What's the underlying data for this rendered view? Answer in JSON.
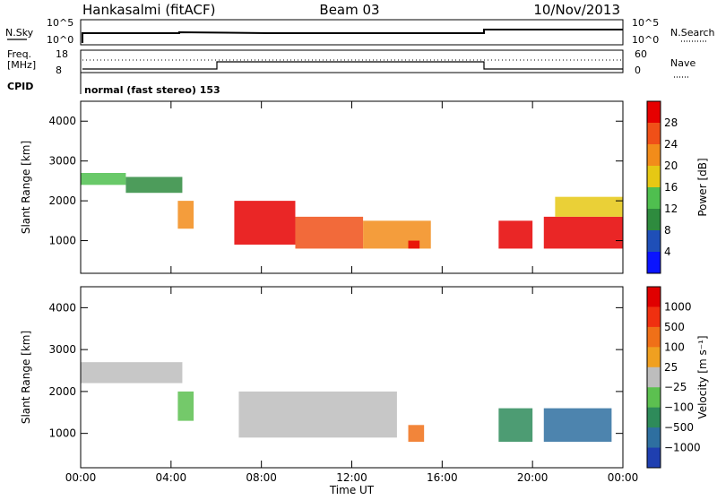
{
  "header": {
    "station": "Hankasalmi (fitACF)",
    "beam": "Beam 03",
    "date": "10/Nov/2013"
  },
  "top_panels": {
    "nsky_label": "N.Sky",
    "nsky_ticks": [
      "10^5",
      "10^0"
    ],
    "nsearch_label": "N.Search",
    "nsearch_ticks": [
      "10^5",
      "10^0"
    ],
    "freq_label": "Freq.",
    "freq_unit": "[MHz]",
    "freq_ticks": [
      "18",
      "8"
    ],
    "nave_label": "Nave",
    "nave_ticks": [
      "60",
      "0"
    ],
    "cpid_label": "CPID",
    "cpid_text": "normal (fast stereo) 153"
  },
  "chart_data": [
    {
      "type": "heatmap",
      "name": "power-panel",
      "ylabel": "Slant Range [km]",
      "xlabel": "",
      "xticks": [
        "00:00",
        "04:00",
        "08:00",
        "12:00",
        "16:00",
        "20:00",
        "00:00"
      ],
      "xrange_hours": [
        0,
        24
      ],
      "yticks": [
        "4000",
        "3000",
        "2000",
        "1000"
      ],
      "ylim": [
        180,
        4500
      ],
      "colorbar": {
        "label": "Power [dB]",
        "ticks": [
          "28",
          "24",
          "20",
          "16",
          "12",
          "8",
          "4"
        ],
        "colors": [
          "#0a14ff",
          "#1f4fb8",
          "#2e8b3e",
          "#4fbf4f",
          "#e6c814",
          "#f28c1a",
          "#f05018",
          "#e60000"
        ]
      },
      "regions": [
        {
          "t0": 0.0,
          "t1": 2.0,
          "r0": 2400,
          "r1": 2700,
          "level": 3
        },
        {
          "t0": 2.0,
          "t1": 4.5,
          "r0": 2200,
          "r1": 2600,
          "level": 2
        },
        {
          "t0": 4.3,
          "t1": 5.0,
          "r0": 1300,
          "r1": 2000,
          "level": 5
        },
        {
          "t0": 6.8,
          "t1": 9.5,
          "r0": 900,
          "r1": 2000,
          "level": 7
        },
        {
          "t0": 9.5,
          "t1": 12.5,
          "r0": 800,
          "r1": 1600,
          "level": 6
        },
        {
          "t0": 12.5,
          "t1": 15.5,
          "r0": 800,
          "r1": 1500,
          "level": 5
        },
        {
          "t0": 14.5,
          "t1": 15.0,
          "r0": 800,
          "r1": 1000,
          "level": 7
        },
        {
          "t0": 18.5,
          "t1": 20.0,
          "r0": 800,
          "r1": 1500,
          "level": 7
        },
        {
          "t0": 20.5,
          "t1": 24.0,
          "r0": 800,
          "r1": 1600,
          "level": 7
        },
        {
          "t0": 21.0,
          "t1": 24.0,
          "r0": 1600,
          "r1": 2100,
          "level": 4
        }
      ]
    },
    {
      "type": "heatmap",
      "name": "velocity-panel",
      "ylabel": "Slant Range [km]",
      "xlabel": "Time UT",
      "xticks": [
        "00:00",
        "04:00",
        "08:00",
        "12:00",
        "16:00",
        "20:00",
        "00:00"
      ],
      "xrange_hours": [
        0,
        24
      ],
      "yticks": [
        "4000",
        "3000",
        "2000",
        "1000"
      ],
      "ylim": [
        180,
        4500
      ],
      "colorbar": {
        "label": "Velocity [m s⁻¹]",
        "ticks": [
          "1000",
          "500",
          "100",
          "25",
          "−25",
          "−100",
          "−500",
          "−1000"
        ],
        "colors": [
          "#1f3fb0",
          "#2e6fa0",
          "#2e8b5a",
          "#5cc050",
          "#bdbdbd",
          "#f0a020",
          "#f07018",
          "#f03010",
          "#e00000"
        ]
      },
      "regions": [
        {
          "t0": 0.0,
          "t1": 4.5,
          "r0": 2200,
          "r1": 2700,
          "level": 4
        },
        {
          "t0": 4.3,
          "t1": 5.0,
          "r0": 1300,
          "r1": 2000,
          "level": 3
        },
        {
          "t0": 7.0,
          "t1": 14.0,
          "r0": 900,
          "r1": 2000,
          "level": 4
        },
        {
          "t0": 14.5,
          "t1": 15.2,
          "r0": 800,
          "r1": 1200,
          "level": 6
        },
        {
          "t0": 18.5,
          "t1": 20.0,
          "r0": 800,
          "r1": 1600,
          "level": 2
        },
        {
          "t0": 20.5,
          "t1": 23.5,
          "r0": 800,
          "r1": 1600,
          "level": 1
        }
      ]
    }
  ]
}
